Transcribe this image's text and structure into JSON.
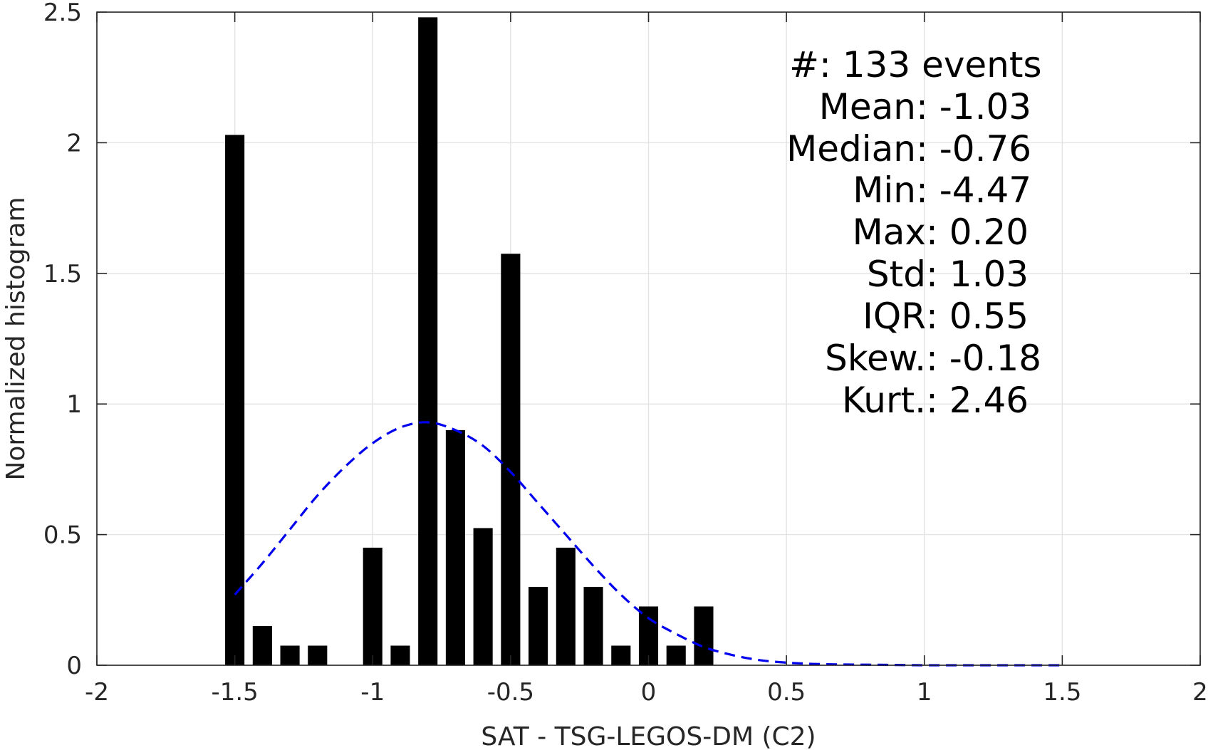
{
  "chart_data": {
    "type": "bar",
    "xlabel": "SAT - TSG-LEGOS-DM (C2)",
    "ylabel": "Normalized histogram",
    "xlim": [
      -2,
      2
    ],
    "ylim": [
      0,
      2.5
    ],
    "xticks": [
      -2,
      -1.5,
      -1,
      -0.5,
      0,
      0.5,
      1,
      1.5,
      2
    ],
    "xtick_labels": [
      "-2",
      "-1.5",
      "-1",
      "-0.5",
      "0",
      "0.5",
      "1",
      "1.5",
      "2"
    ],
    "yticks": [
      0,
      0.5,
      1,
      1.5,
      2,
      2.5
    ],
    "ytick_labels": [
      "0",
      "0.5",
      "1",
      "1.5",
      "2",
      "2.5"
    ],
    "grid": true,
    "bar_width": 0.07,
    "bar_color": "#000000",
    "bars": {
      "x": [
        -1.5,
        -1.4,
        -1.3,
        -1.2,
        -1.0,
        -0.9,
        -0.8,
        -0.7,
        -0.6,
        -0.5,
        -0.4,
        -0.3,
        -0.2,
        -0.1,
        0.0,
        0.1,
        0.2
      ],
      "values": [
        2.03,
        0.15,
        0.075,
        0.075,
        0.45,
        0.075,
        2.48,
        0.9,
        0.525,
        1.575,
        0.3,
        0.45,
        0.3,
        0.075,
        0.225,
        0.075,
        0.225
      ]
    },
    "fit_curve": {
      "style": "dashed",
      "color": "#0000ee",
      "x": [
        -1.5,
        -1.4,
        -1.3,
        -1.2,
        -1.1,
        -1.0,
        -0.9,
        -0.8,
        -0.7,
        -0.6,
        -0.5,
        -0.4,
        -0.3,
        -0.2,
        -0.1,
        0.0,
        0.1,
        0.2,
        0.3,
        0.4,
        0.5,
        0.6,
        0.7,
        0.8,
        0.9,
        1.0,
        1.1,
        1.2,
        1.3,
        1.4,
        1.5
      ],
      "values": [
        0.27,
        0.39,
        0.52,
        0.65,
        0.76,
        0.85,
        0.91,
        0.93,
        0.9,
        0.84,
        0.74,
        0.62,
        0.5,
        0.38,
        0.27,
        0.18,
        0.12,
        0.07,
        0.04,
        0.02,
        0.01,
        0.005,
        0.003,
        0.002,
        0.001,
        0.0,
        0.0,
        0.0,
        0.0,
        0.0,
        0.0
      ]
    },
    "annotations": [
      {
        "label": "#  ",
        "value": ": 133 events"
      },
      {
        "label": "Mean ",
        "value": ": -1.03"
      },
      {
        "label": "Median ",
        "value": ": -0.76"
      },
      {
        "label": "Min ",
        "value": ": -4.47"
      },
      {
        "label": "Max ",
        "value": ": 0.20"
      },
      {
        "label": "Std ",
        "value": ": 1.03"
      },
      {
        "label": "IQR ",
        "value": ": 0.55"
      },
      {
        "label": "Skew. ",
        "value": ": -0.18"
      },
      {
        "label": "Kurt. ",
        "value": ": 2.46"
      }
    ]
  }
}
